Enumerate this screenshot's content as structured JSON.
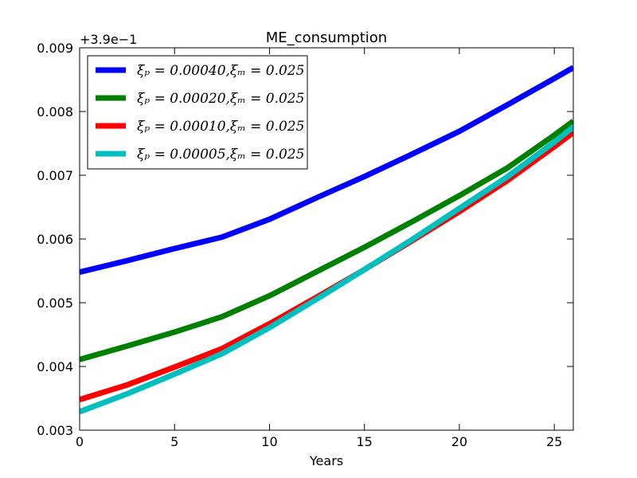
{
  "chart_data": {
    "type": "line",
    "title": "ME_consumption",
    "xlabel": "Years",
    "ylabel": "",
    "offset_label": "+3.9e−1",
    "xlim": [
      0,
      26
    ],
    "ylim": [
      0.003,
      0.009
    ],
    "xticks": [
      0,
      5,
      10,
      15,
      20,
      25
    ],
    "yticks": [
      0.003,
      0.004,
      0.005,
      0.006,
      0.007,
      0.008,
      0.009
    ],
    "xtick_labels": [
      "0",
      "5",
      "10",
      "15",
      "20",
      "25"
    ],
    "ytick_labels": [
      "0.003",
      "0.004",
      "0.005",
      "0.006",
      "0.007",
      "0.008",
      "0.009"
    ],
    "grid": false,
    "legend_position": "upper-left",
    "series": [
      {
        "name": "ξ_p = 0.00040, ξ_m = 0.025",
        "legend_label": "ξₚ = 0.00040,ξₘ = 0.025",
        "color": "#0000ff",
        "x": [
          0,
          2.5,
          5,
          7.5,
          10,
          12.5,
          15,
          17.5,
          20,
          22.5,
          25,
          26
        ],
        "y": [
          0.00548,
          0.00566,
          0.00585,
          0.00603,
          0.00631,
          0.00665,
          0.00698,
          0.00733,
          0.00769,
          0.0081,
          0.00852,
          0.00869
        ]
      },
      {
        "name": "ξ_p = 0.00020, ξ_m = 0.025",
        "legend_label": "ξₚ = 0.00020,ξₘ = 0.025",
        "color": "#008000",
        "x": [
          0,
          2.5,
          5,
          7.5,
          10,
          12.5,
          15,
          17.5,
          20,
          22.5,
          25,
          26
        ],
        "y": [
          0.00411,
          0.00432,
          0.00454,
          0.00478,
          0.00511,
          0.00549,
          0.00587,
          0.00627,
          0.00668,
          0.00711,
          0.00763,
          0.00785
        ]
      },
      {
        "name": "ξ_p = 0.00010, ξ_m = 0.025",
        "legend_label": "ξₚ = 0.00010,ξₘ = 0.025",
        "color": "#ff0000",
        "x": [
          0,
          2.5,
          5,
          7.5,
          10,
          12.5,
          15,
          17.5,
          20,
          22.5,
          25,
          26
        ],
        "y": [
          0.00348,
          0.00371,
          0.00399,
          0.00428,
          0.00467,
          0.00509,
          0.00552,
          0.00597,
          0.00643,
          0.00691,
          0.00745,
          0.00767
        ]
      },
      {
        "name": "ξ_p = 0.00005, ξ_m = 0.025",
        "legend_label": "ξₚ = 0.00005,ξₘ = 0.025",
        "color": "#00bfbf",
        "x": [
          0,
          2.5,
          5,
          7.5,
          10,
          12.5,
          15,
          17.5,
          20,
          22.5,
          25,
          26
        ],
        "y": [
          0.00329,
          0.00357,
          0.00388,
          0.0042,
          0.00461,
          0.00506,
          0.00552,
          0.00599,
          0.00648,
          0.00697,
          0.00752,
          0.00776
        ]
      }
    ]
  }
}
